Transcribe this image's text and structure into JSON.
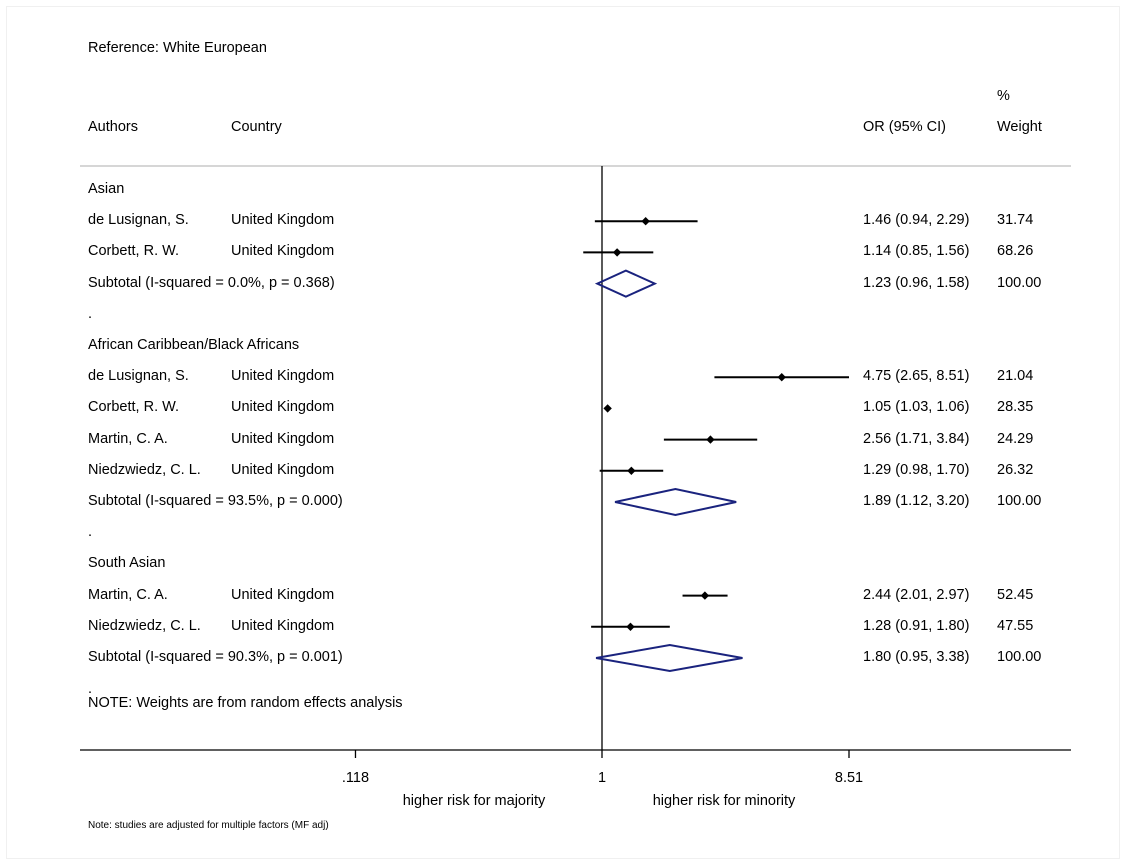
{
  "chart_data": {
    "type": "forest",
    "title": "Reference: White European",
    "columns": {
      "authors": "Authors",
      "country": "Country",
      "effect": "OR (95% CI)",
      "weight_top": "%",
      "weight": "Weight"
    },
    "x_scale": "log",
    "xticks": [
      ".118",
      "1",
      "8.51"
    ],
    "xtick_values": [
      0.118,
      1,
      8.51
    ],
    "xlim": [
      0.0195,
      10.6
    ],
    "xlabel_left": "higher risk for majority",
    "xlabel_right": "higher risk for minority",
    "groups": [
      {
        "name": "Asian",
        "studies": [
          {
            "author": "de Lusignan, S.",
            "country": "United Kingdom",
            "or": 1.46,
            "lo": 0.94,
            "hi": 2.29,
            "ci_text": "1.46 (0.94, 2.29)",
            "weight": "31.74"
          },
          {
            "author": "Corbett, R. W.",
            "country": "United Kingdom",
            "or": 1.14,
            "lo": 0.85,
            "hi": 1.56,
            "ci_text": "1.14 (0.85, 1.56)",
            "weight": "68.26"
          }
        ],
        "subtotal": {
          "label": "Subtotal  (I-squared = 0.0%, p = 0.368)",
          "or": 1.23,
          "lo": 0.96,
          "hi": 1.58,
          "ci_text": "1.23 (0.96, 1.58)",
          "weight": "100.00"
        }
      },
      {
        "name": "African Caribbean/Black Africans",
        "studies": [
          {
            "author": "de Lusignan, S.",
            "country": "United Kingdom",
            "or": 4.75,
            "lo": 2.65,
            "hi": 8.51,
            "ci_text": "4.75 (2.65, 8.51)",
            "weight": "21.04"
          },
          {
            "author": "Corbett, R. W.",
            "country": "United Kingdom",
            "or": 1.05,
            "lo": 1.03,
            "hi": 1.06,
            "ci_text": "1.05 (1.03, 1.06)",
            "weight": "28.35"
          },
          {
            "author": "Martin, C. A.",
            "country": "United Kingdom",
            "or": 2.56,
            "lo": 1.71,
            "hi": 3.84,
            "ci_text": "2.56 (1.71, 3.84)",
            "weight": "24.29"
          },
          {
            "author": "Niedzwiedz, C. L.",
            "country": "United Kingdom",
            "or": 1.29,
            "lo": 0.98,
            "hi": 1.7,
            "ci_text": "1.29 (0.98, 1.70)",
            "weight": "26.32"
          }
        ],
        "subtotal": {
          "label": "Subtotal  (I-squared = 93.5%, p = 0.000)",
          "or": 1.89,
          "lo": 1.12,
          "hi": 3.2,
          "ci_text": "1.89 (1.12, 3.20)",
          "weight": "100.00"
        }
      },
      {
        "name": "South Asian",
        "studies": [
          {
            "author": "Martin, C. A.",
            "country": "United Kingdom",
            "or": 2.44,
            "lo": 2.01,
            "hi": 2.97,
            "ci_text": "2.44 (2.01, 2.97)",
            "weight": "52.45"
          },
          {
            "author": "Niedzwiedz, C. L.",
            "country": "United Kingdom",
            "or": 1.28,
            "lo": 0.91,
            "hi": 1.8,
            "ci_text": "1.28 (0.91, 1.80)",
            "weight": "47.55"
          }
        ],
        "subtotal": {
          "label": "Subtotal  (I-squared = 90.3%, p = 0.001)",
          "or": 1.8,
          "lo": 0.95,
          "hi": 3.38,
          "ci_text": "1.80 (0.95, 3.38)",
          "weight": "100.00"
        }
      }
    ],
    "separator": ".",
    "note_weights": "NOTE: Weights are from random effects analysis",
    "footnote": "Note: studies are adjusted for multiple factors (MF adj)",
    "colors": {
      "point": "#000000",
      "diamond": "#1a237e",
      "axis": "#000000",
      "divider": "#c8c8c8"
    }
  }
}
